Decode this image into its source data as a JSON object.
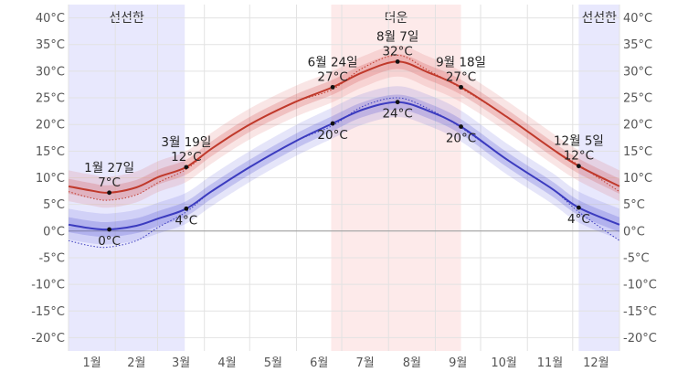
{
  "chart_data": {
    "type": "line",
    "y_unit": "°C",
    "ylim": [
      -22.5,
      42.5
    ],
    "y_ticks": [
      40,
      35,
      30,
      25,
      20,
      15,
      10,
      5,
      0,
      -5,
      -10,
      -15,
      -20
    ],
    "y_tick_labels": [
      "40°C",
      "35°C",
      "30°C",
      "25°C",
      "20°C",
      "15°C",
      "10°C",
      "5°C",
      "0°C",
      "-5°C",
      "-10°C",
      "-15°C",
      "-20°C"
    ],
    "x_domain_days": [
      0,
      365
    ],
    "months": [
      "1월",
      "2월",
      "3월",
      "4월",
      "5월",
      "6월",
      "7월",
      "8월",
      "9월",
      "10월",
      "11월",
      "12월"
    ],
    "month_start_days": [
      0,
      31,
      59,
      90,
      120,
      151,
      181,
      212,
      243,
      273,
      304,
      334,
      365
    ],
    "grid": true,
    "seasons": [
      {
        "label": "선선한",
        "start_day": 0,
        "end_day": 77,
        "color": "#e8e8fd"
      },
      {
        "label": "더운",
        "start_day": 174,
        "end_day": 260,
        "color": "#fdeaea"
      },
      {
        "label": "선선한",
        "start_day": 338,
        "end_day": 365,
        "color": "#e8e8fd"
      }
    ],
    "series": [
      {
        "role": "high",
        "color": "#c0392b",
        "band_inner": "rgba(210,70,70,0.22)",
        "band_outer": "rgba(210,70,70,0.14)",
        "points": [
          {
            "day": 0,
            "mean": 8.4,
            "p25": 7.0,
            "p75": 9.8,
            "p10": 5.6,
            "p90": 11.4,
            "ref": 7.4
          },
          {
            "day": 15,
            "mean": 7.6,
            "p25": 6.2,
            "p75": 9.0,
            "p10": 4.8,
            "p90": 10.6,
            "ref": 6.2
          },
          {
            "day": 27,
            "mean": 7.2,
            "p25": 5.8,
            "p75": 8.6,
            "p10": 4.4,
            "p90": 10.2,
            "ref": 5.8
          },
          {
            "day": 45,
            "mean": 8.2,
            "p25": 6.8,
            "p75": 9.6,
            "p10": 5.4,
            "p90": 11.2,
            "ref": 6.8
          },
          {
            "day": 60,
            "mean": 10.2,
            "p25": 8.8,
            "p75": 11.6,
            "p10": 7.4,
            "p90": 13.2,
            "ref": 9.2
          },
          {
            "day": 78,
            "mean": 12.0,
            "p25": 10.6,
            "p75": 13.4,
            "p10": 9.2,
            "p90": 15.0,
            "ref": 11.6
          },
          {
            "day": 95,
            "mean": 15.5,
            "p25": 14.1,
            "p75": 16.9,
            "p10": 12.7,
            "p90": 18.5,
            "ref": 15.5
          },
          {
            "day": 120,
            "mean": 20.0,
            "p25": 18.6,
            "p75": 21.4,
            "p10": 17.2,
            "p90": 23.0,
            "ref": 20.0
          },
          {
            "day": 150,
            "mean": 24.2,
            "p25": 22.8,
            "p75": 25.6,
            "p10": 21.4,
            "p90": 27.2,
            "ref": 24.2
          },
          {
            "day": 175,
            "mean": 27.0,
            "p25": 25.6,
            "p75": 28.4,
            "p10": 24.2,
            "p90": 30.0,
            "ref": 26.6
          },
          {
            "day": 195,
            "mean": 29.8,
            "p25": 28.4,
            "p75": 31.2,
            "p10": 27.0,
            "p90": 32.8,
            "ref": 30.6
          },
          {
            "day": 218,
            "mean": 31.8,
            "p25": 30.4,
            "p75": 33.2,
            "p10": 29.0,
            "p90": 34.8,
            "ref": 33.0
          },
          {
            "day": 238,
            "mean": 29.8,
            "p25": 28.4,
            "p75": 31.2,
            "p10": 27.0,
            "p90": 32.8,
            "ref": 30.2
          },
          {
            "day": 260,
            "mean": 27.0,
            "p25": 25.6,
            "p75": 28.4,
            "p10": 24.2,
            "p90": 30.0,
            "ref": 26.8
          },
          {
            "day": 290,
            "mean": 21.5,
            "p25": 20.1,
            "p75": 22.9,
            "p10": 18.7,
            "p90": 24.5,
            "ref": 21.5
          },
          {
            "day": 320,
            "mean": 15.5,
            "p25": 14.1,
            "p75": 16.9,
            "p10": 12.7,
            "p90": 18.5,
            "ref": 15.5
          },
          {
            "day": 338,
            "mean": 12.2,
            "p25": 10.8,
            "p75": 13.6,
            "p10": 9.4,
            "p90": 15.2,
            "ref": 12.4
          },
          {
            "day": 365,
            "mean": 8.4,
            "p25": 7.0,
            "p75": 9.8,
            "p10": 5.6,
            "p90": 11.4,
            "ref": 7.4
          }
        ]
      },
      {
        "role": "low",
        "color": "#3b3bbf",
        "band_inner": "rgba(70,70,210,0.22)",
        "band_outer": "rgba(70,70,210,0.14)",
        "points": [
          {
            "day": 0,
            "mean": 1.2,
            "p25": -0.2,
            "p75": 2.6,
            "p10": -1.6,
            "p90": 4.2,
            "ref": -1.8
          },
          {
            "day": 15,
            "mean": 0.5,
            "p25": -0.9,
            "p75": 1.9,
            "p10": -2.3,
            "p90": 3.5,
            "ref": -2.8
          },
          {
            "day": 27,
            "mean": 0.3,
            "p25": -1.1,
            "p75": 1.7,
            "p10": -2.5,
            "p90": 3.3,
            "ref": -3.0
          },
          {
            "day": 45,
            "mean": 1.0,
            "p25": -0.4,
            "p75": 2.4,
            "p10": -1.8,
            "p90": 4.0,
            "ref": -1.8
          },
          {
            "day": 60,
            "mean": 2.4,
            "p25": 1.0,
            "p75": 3.8,
            "p10": -0.4,
            "p90": 5.4,
            "ref": 0.8
          },
          {
            "day": 78,
            "mean": 4.2,
            "p25": 2.8,
            "p75": 5.6,
            "p10": 1.4,
            "p90": 7.2,
            "ref": 3.6
          },
          {
            "day": 95,
            "mean": 7.5,
            "p25": 6.1,
            "p75": 8.9,
            "p10": 4.7,
            "p90": 10.5,
            "ref": 7.5
          },
          {
            "day": 120,
            "mean": 12.0,
            "p25": 10.6,
            "p75": 13.4,
            "p10": 9.2,
            "p90": 15.0,
            "ref": 12.0
          },
          {
            "day": 150,
            "mean": 16.8,
            "p25": 15.4,
            "p75": 18.2,
            "p10": 14.0,
            "p90": 19.8,
            "ref": 16.8
          },
          {
            "day": 175,
            "mean": 20.2,
            "p25": 18.8,
            "p75": 21.6,
            "p10": 17.4,
            "p90": 23.2,
            "ref": 19.8
          },
          {
            "day": 195,
            "mean": 22.8,
            "p25": 21.4,
            "p75": 24.2,
            "p10": 20.0,
            "p90": 25.8,
            "ref": 23.4
          },
          {
            "day": 218,
            "mean": 24.2,
            "p25": 22.8,
            "p75": 25.6,
            "p10": 21.4,
            "p90": 27.2,
            "ref": 25.0
          },
          {
            "day": 238,
            "mean": 22.6,
            "p25": 21.2,
            "p75": 24.0,
            "p10": 19.8,
            "p90": 25.6,
            "ref": 23.0
          },
          {
            "day": 260,
            "mean": 19.6,
            "p25": 18.2,
            "p75": 21.0,
            "p10": 16.8,
            "p90": 22.6,
            "ref": 19.4
          },
          {
            "day": 290,
            "mean": 13.5,
            "p25": 12.1,
            "p75": 14.9,
            "p10": 10.7,
            "p90": 16.5,
            "ref": 13.5
          },
          {
            "day": 320,
            "mean": 8.0,
            "p25": 6.6,
            "p75": 9.4,
            "p10": 5.2,
            "p90": 11.0,
            "ref": 8.0
          },
          {
            "day": 338,
            "mean": 4.4,
            "p25": 3.0,
            "p75": 5.8,
            "p10": 1.6,
            "p90": 7.4,
            "ref": 3.6
          },
          {
            "day": 365,
            "mean": 1.2,
            "p25": -0.2,
            "p75": 2.6,
            "p10": -1.6,
            "p90": 4.2,
            "ref": -1.8
          }
        ]
      }
    ],
    "annotations": [
      {
        "day": 27,
        "value": 7.2,
        "date_label": "1월 27일",
        "value_label": "7°C",
        "placement": "above"
      },
      {
        "day": 27,
        "value": 0.3,
        "date_label": "",
        "value_label": "0°C",
        "placement": "below"
      },
      {
        "day": 78,
        "value": 12.0,
        "date_label": "3월 19일",
        "value_label": "12°C",
        "placement": "above"
      },
      {
        "day": 78,
        "value": 4.2,
        "date_label": "",
        "value_label": "4°C",
        "placement": "below"
      },
      {
        "day": 175,
        "value": 27.0,
        "date_label": "6월 24일",
        "value_label": "27°C",
        "placement": "above"
      },
      {
        "day": 175,
        "value": 20.2,
        "date_label": "",
        "value_label": "20°C",
        "placement": "below"
      },
      {
        "day": 218,
        "value": 31.8,
        "date_label": "8월 7일",
        "value_label": "32°C",
        "placement": "above"
      },
      {
        "day": 218,
        "value": 24.2,
        "date_label": "",
        "value_label": "24°C",
        "placement": "below"
      },
      {
        "day": 260,
        "value": 27.0,
        "date_label": "9월 18일",
        "value_label": "27°C",
        "placement": "above"
      },
      {
        "day": 260,
        "value": 19.6,
        "date_label": "",
        "value_label": "20°C",
        "placement": "below"
      },
      {
        "day": 338,
        "value": 12.2,
        "date_label": "12월 5일",
        "value_label": "12°C",
        "placement": "above"
      },
      {
        "day": 338,
        "value": 4.4,
        "date_label": "",
        "value_label": "4°C",
        "placement": "below"
      }
    ]
  }
}
